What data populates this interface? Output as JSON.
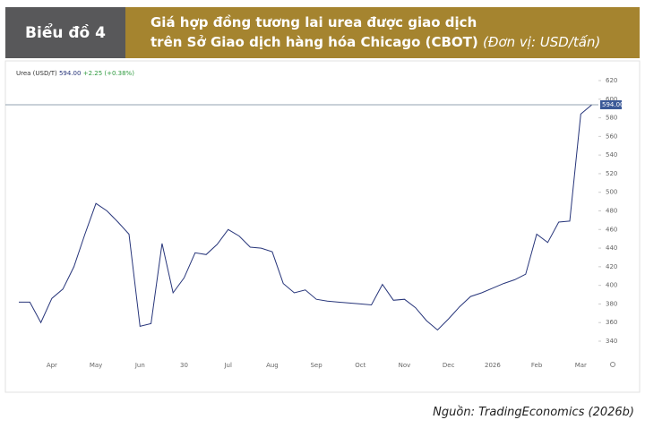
{
  "header": {
    "label": "Biểu đồ 4",
    "title_line1": "Giá hợp đồng tương lai urea được giao dịch",
    "title_line2": "trên Sở Giao dịch hàng hóa Chicago (CBOT)",
    "unit": "(Đơn vị: USD/tấn)"
  },
  "source": "Nguồn: TradingEconomics (2026b)",
  "chart_data": {
    "type": "line",
    "categories": [
      null,
      null,
      null,
      "Apr",
      null,
      null,
      null,
      "May",
      null,
      null,
      null,
      "Jun",
      null,
      null,
      null,
      "30",
      null,
      null,
      null,
      "Jul",
      null,
      null,
      null,
      "Aug",
      null,
      null,
      null,
      "Sep",
      null,
      null,
      null,
      "Oct",
      null,
      null,
      null,
      "Nov",
      null,
      null,
      null,
      "Dec",
      null,
      null,
      null,
      "2026",
      null,
      null,
      null,
      "Feb",
      null,
      null,
      null,
      "Mar",
      null
    ],
    "series": [
      {
        "name": "Urea (USD/T)",
        "color": "#27357a",
        "values": [
          382,
          382,
          360,
          386,
          396,
          420,
          455,
          488,
          480,
          468,
          455,
          356,
          359,
          445,
          392,
          408,
          435,
          433,
          444,
          460,
          453,
          441,
          440,
          436,
          402,
          392,
          395,
          385,
          383,
          382,
          381,
          380,
          379,
          401,
          384,
          385,
          376,
          362,
          352,
          364,
          377,
          388,
          392,
          397,
          402,
          406,
          412,
          455,
          446,
          468,
          469,
          584,
          594
        ]
      }
    ],
    "last_price": {
      "value": 594,
      "label": "594.00"
    },
    "change": "+2.25 (+0.38%)",
    "ylim": [
      330,
      630
    ],
    "yticks": [
      340,
      360,
      380,
      400,
      420,
      440,
      460,
      480,
      500,
      520,
      540,
      560,
      580,
      600,
      620
    ],
    "grid": false
  }
}
